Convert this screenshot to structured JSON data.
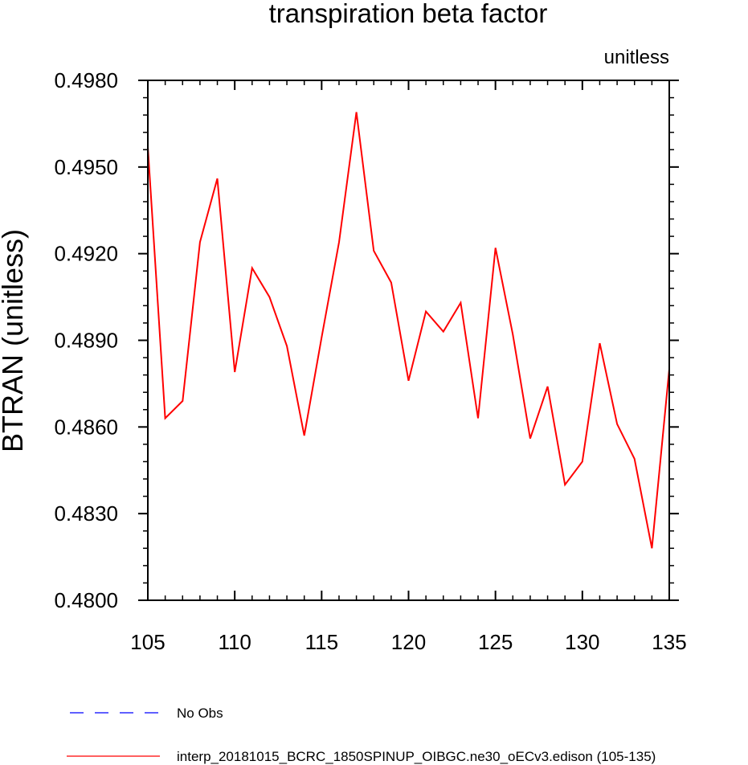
{
  "chart_data": {
    "type": "line",
    "title": "transpiration beta factor",
    "units_label": "unitless",
    "xlabel": "",
    "ylabel": "BTRAN  (unitless)",
    "xlim": [
      105,
      135
    ],
    "ylim": [
      0.48,
      0.498
    ],
    "x_ticks": [
      105,
      110,
      115,
      120,
      125,
      130,
      135
    ],
    "y_ticks": [
      "0.4800",
      "0.4830",
      "0.4860",
      "0.4890",
      "0.4920",
      "0.4950",
      "0.4980"
    ],
    "grid": false,
    "legend_position": "bottom-left",
    "series": [
      {
        "name": "interp_20181015_BCRC_1850SPINUP_OIBGC.ne30_oECv3.edison (105-135)",
        "color": "#ff0000",
        "style": "solid",
        "x": [
          105,
          106,
          107,
          108,
          109,
          110,
          111,
          112,
          113,
          114,
          115,
          116,
          117,
          118,
          119,
          120,
          121,
          122,
          123,
          124,
          125,
          126,
          127,
          128,
          129,
          130,
          131,
          132,
          133,
          134,
          135
        ],
        "y": [
          0.4957,
          0.4863,
          0.4869,
          0.4924,
          0.4946,
          0.4879,
          0.4915,
          0.4905,
          0.4888,
          0.4857,
          0.4891,
          0.4924,
          0.4969,
          0.4921,
          0.491,
          0.4876,
          0.49,
          0.4893,
          0.4903,
          0.4863,
          0.4922,
          0.4892,
          0.4856,
          0.4874,
          0.484,
          0.4848,
          0.4889,
          0.4861,
          0.4849,
          0.4818,
          0.488
        ]
      },
      {
        "name": "No Obs",
        "color": "#0000ff",
        "style": "dashed",
        "x": [],
        "y": []
      }
    ]
  }
}
